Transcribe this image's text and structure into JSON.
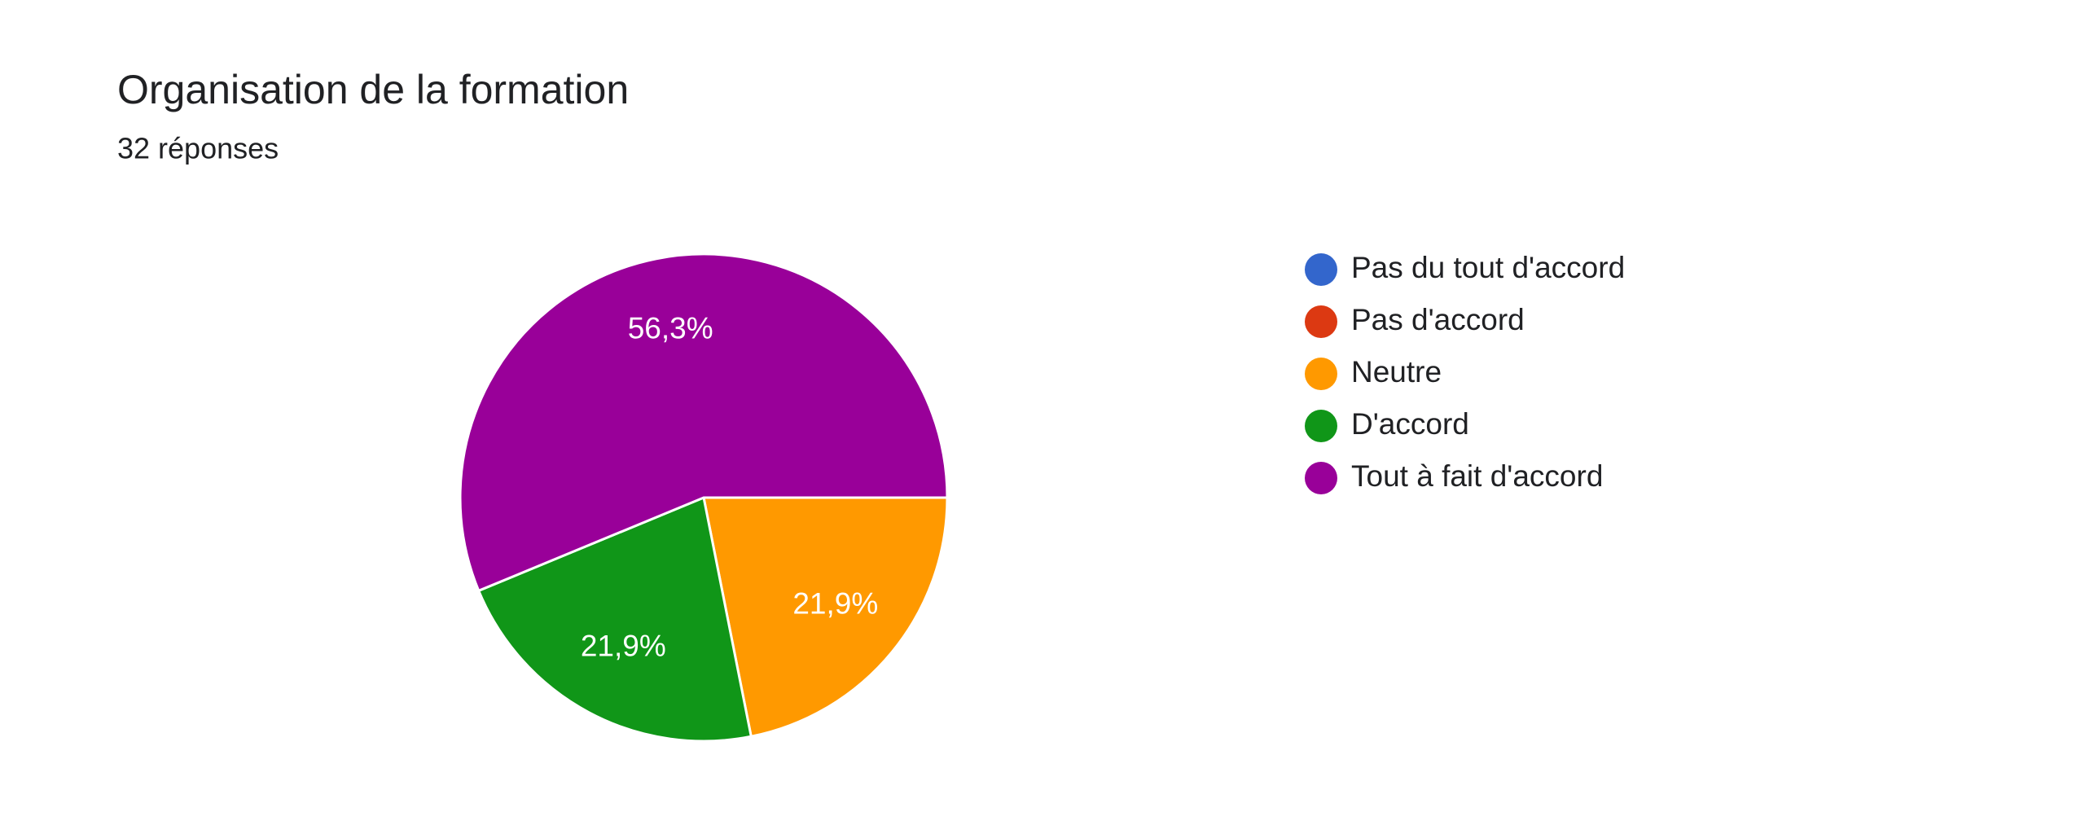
{
  "chart_data": {
    "type": "pie",
    "title": "Organisation de la formation",
    "subtitle": "32 réponses",
    "categories": [
      "Pas du tout d'accord",
      "Pas d'accord",
      "Neutre",
      "D'accord",
      "Tout à fait d'accord"
    ],
    "values": [
      0,
      0,
      21.9,
      21.9,
      56.3
    ],
    "value_labels": [
      null,
      null,
      "21,9%",
      "21,9%",
      "56,3%"
    ],
    "colors": [
      "#3366cc",
      "#dc3912",
      "#ff9900",
      "#109618",
      "#990099"
    ],
    "legend": "right"
  }
}
